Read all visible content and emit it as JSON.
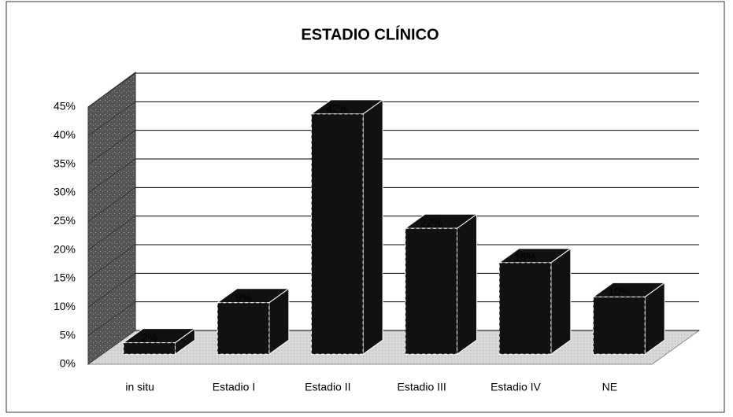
{
  "chart_data": {
    "type": "bar",
    "title": "ESTADIO CLÍNICO",
    "categories": [
      "in situ",
      "Estadio I",
      "Estadio II",
      "Estadio III",
      "Estadio IV",
      "NE"
    ],
    "values": [
      2,
      9,
      42,
      22,
      16,
      10
    ],
    "value_labels": [
      "2%",
      "9%",
      "42%",
      "22%",
      "16%",
      "10%"
    ],
    "color": "#111111",
    "ylim": [
      0,
      45
    ],
    "yticks": [
      {
        "value": 0,
        "label": "0%"
      },
      {
        "value": 5,
        "label": "5%"
      },
      {
        "value": 10,
        "label": "10%"
      },
      {
        "value": 15,
        "label": "15%"
      },
      {
        "value": 20,
        "label": "20%"
      },
      {
        "value": 25,
        "label": "25%"
      },
      {
        "value": 30,
        "label": "30%"
      },
      {
        "value": 35,
        "label": "35%"
      },
      {
        "value": 40,
        "label": "40%"
      },
      {
        "value": 45,
        "label": "45%"
      }
    ],
    "grid": true
  }
}
